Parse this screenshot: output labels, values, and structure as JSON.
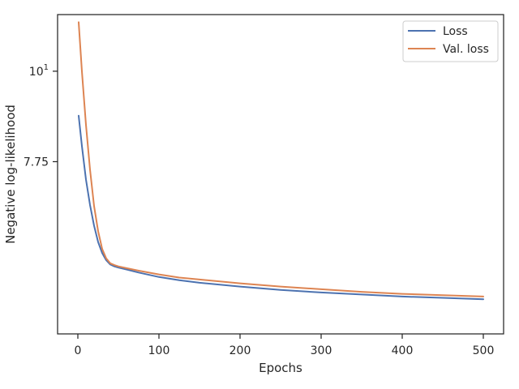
{
  "chart_data": {
    "type": "line",
    "title": "",
    "xlabel": "Epochs",
    "ylabel": "Negative log-likelihood",
    "yscale": "log",
    "xlim": [
      -25,
      525
    ],
    "ylim": [
      4.77,
      11.73
    ],
    "grid": false,
    "legend_position": "top-right",
    "x_ticks": [
      0,
      100,
      200,
      300,
      400,
      500
    ],
    "x_tick_labels": [
      "0",
      "100",
      "200",
      "300",
      "400",
      "500"
    ],
    "y_ticks": [
      7.75,
      10
    ],
    "y_tick_labels": [
      "7.75",
      "10"
    ],
    "y_tick_exponent": "1",
    "series": [
      {
        "name": "Loss",
        "color": "#4c72b0",
        "x": [
          1,
          5,
          10,
          15,
          20,
          25,
          30,
          35,
          40,
          45,
          50,
          60,
          75,
          100,
          125,
          150,
          200,
          250,
          300,
          350,
          400,
          450,
          500
        ],
        "y": [
          8.82,
          8.1,
          7.37,
          6.86,
          6.47,
          6.18,
          5.99,
          5.87,
          5.8,
          5.77,
          5.75,
          5.72,
          5.67,
          5.6,
          5.55,
          5.51,
          5.45,
          5.4,
          5.36,
          5.33,
          5.3,
          5.28,
          5.26
        ]
      },
      {
        "name": "Val. loss",
        "color": "#dd8452",
        "x": [
          1,
          5,
          10,
          15,
          20,
          25,
          30,
          35,
          40,
          45,
          50,
          60,
          75,
          100,
          125,
          150,
          200,
          250,
          300,
          350,
          400,
          450,
          500
        ],
        "y": [
          11.48,
          10.0,
          8.6,
          7.58,
          6.84,
          6.37,
          6.06,
          5.9,
          5.82,
          5.79,
          5.77,
          5.74,
          5.7,
          5.64,
          5.59,
          5.56,
          5.5,
          5.45,
          5.41,
          5.37,
          5.34,
          5.32,
          5.3
        ]
      }
    ]
  }
}
